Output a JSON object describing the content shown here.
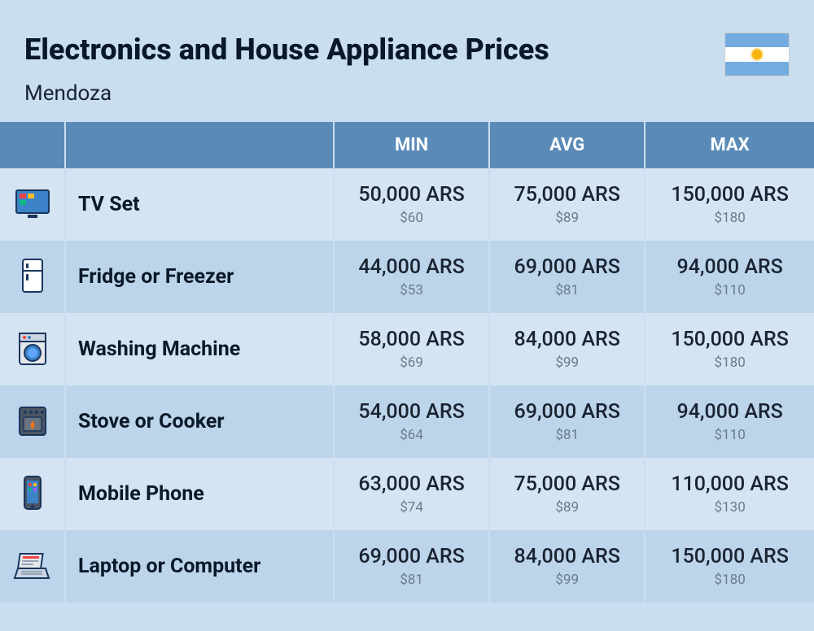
{
  "header": {
    "title": "Electronics and House Appliance Prices",
    "subtitle": "Mendoza"
  },
  "columns": {
    "min": "MIN",
    "avg": "AVG",
    "max": "MAX"
  },
  "colors": {
    "page_bg": "#c9def0",
    "header_bg": "#5a8bb8",
    "header_text": "#ffffff",
    "row_odd": "#d4e4f2",
    "row_even": "#bdd5ea",
    "text_main": "#1a2332",
    "text_sub": "#6b7b8a",
    "flag_blue": "#74acdf",
    "flag_sun": "#f6b40e"
  },
  "rows": [
    {
      "icon": "tv",
      "name": "TV Set",
      "min_ars": "50,000 ARS",
      "min_usd": "$60",
      "avg_ars": "75,000 ARS",
      "avg_usd": "$89",
      "max_ars": "150,000 ARS",
      "max_usd": "$180"
    },
    {
      "icon": "fridge",
      "name": "Fridge or Freezer",
      "min_ars": "44,000 ARS",
      "min_usd": "$53",
      "avg_ars": "69,000 ARS",
      "avg_usd": "$81",
      "max_ars": "94,000 ARS",
      "max_usd": "$110"
    },
    {
      "icon": "washer",
      "name": "Washing Machine",
      "min_ars": "58,000 ARS",
      "min_usd": "$69",
      "avg_ars": "84,000 ARS",
      "avg_usd": "$99",
      "max_ars": "150,000 ARS",
      "max_usd": "$180"
    },
    {
      "icon": "stove",
      "name": "Stove or Cooker",
      "min_ars": "54,000 ARS",
      "min_usd": "$64",
      "avg_ars": "69,000 ARS",
      "avg_usd": "$81",
      "max_ars": "94,000 ARS",
      "max_usd": "$110"
    },
    {
      "icon": "phone",
      "name": "Mobile Phone",
      "min_ars": "63,000 ARS",
      "min_usd": "$74",
      "avg_ars": "75,000 ARS",
      "avg_usd": "$89",
      "max_ars": "110,000 ARS",
      "max_usd": "$130"
    },
    {
      "icon": "laptop",
      "name": "Laptop or Computer",
      "min_ars": "69,000 ARS",
      "min_usd": "$81",
      "avg_ars": "84,000 ARS",
      "avg_usd": "$99",
      "max_ars": "150,000 ARS",
      "max_usd": "$180"
    }
  ]
}
